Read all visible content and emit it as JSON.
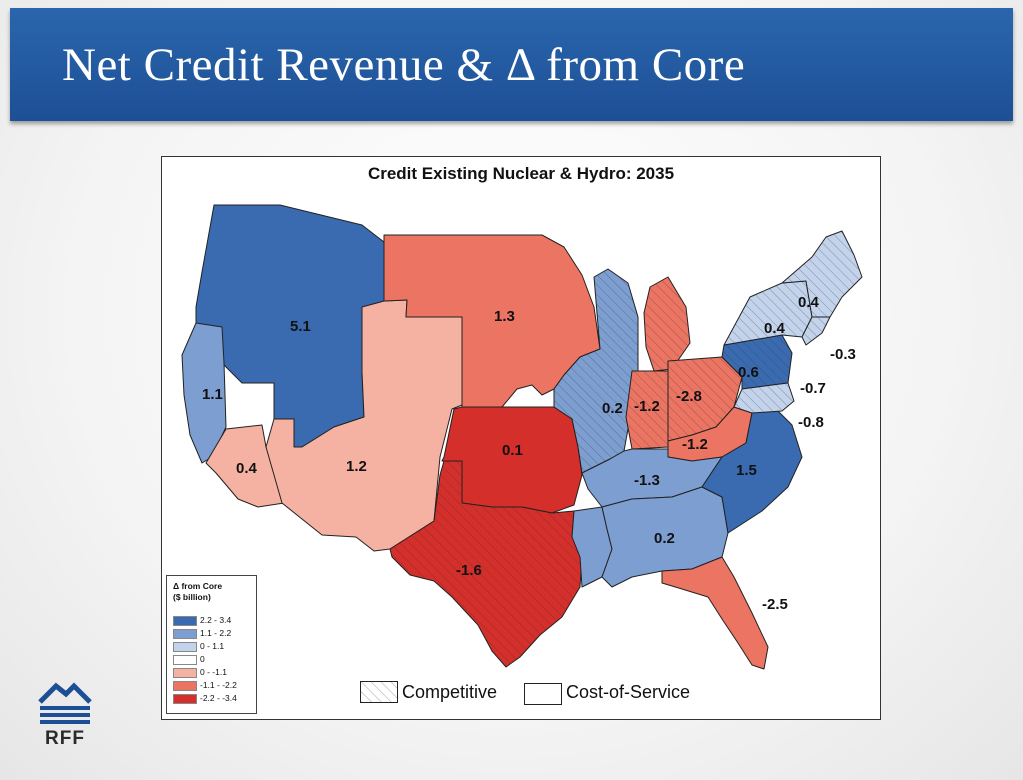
{
  "slide": {
    "title": "Net Credit Revenue & Δ from Core",
    "logo_text": "RFF"
  },
  "map": {
    "title": "Credit Existing Nuclear & Hydro: 2035",
    "region_values": {
      "pacific_northwest": "5.1",
      "california_north": "1.1",
      "california_south": "0.4",
      "southwest": "1.2",
      "northern_plains": "1.3",
      "southern_plains": "0.1",
      "texas": "-1.6",
      "upper_midwest": "0.2",
      "midwest_central": "-1.2",
      "ohio_valley": "-2.8",
      "appalachia": "-1.2",
      "tennessee_valley": "-1.3",
      "southeast": "0.2",
      "carolinas": "1.5",
      "florida": "-2.5",
      "pjm_pa": "0.6",
      "new_york_upstate": "0.4",
      "new_england": "0.4",
      "nyc_area": "-0.3",
      "mid_atlantic": "-0.7",
      "chesapeake": "-0.8"
    },
    "legend": {
      "title_line1": "Δ from Core",
      "title_line2": "($ billion)",
      "items": [
        {
          "label": "2.2 - 3.4",
          "color": "#3a6bb0"
        },
        {
          "label": "1.1 - 2.2",
          "color": "#7d9ed0"
        },
        {
          "label": "0 - 1.1",
          "color": "#c3d3ec"
        },
        {
          "label": "0",
          "color": "#ffffff"
        },
        {
          "label": "0 - -1.1",
          "color": "#f5b2a2"
        },
        {
          "label": "-1.1 - -2.2",
          "color": "#ec7462"
        },
        {
          "label": "-2.2 - -3.4",
          "color": "#d42f2b"
        }
      ]
    },
    "market_legend": {
      "competitive": "Competitive",
      "cost_of_service": "Cost-of-Service"
    }
  }
}
